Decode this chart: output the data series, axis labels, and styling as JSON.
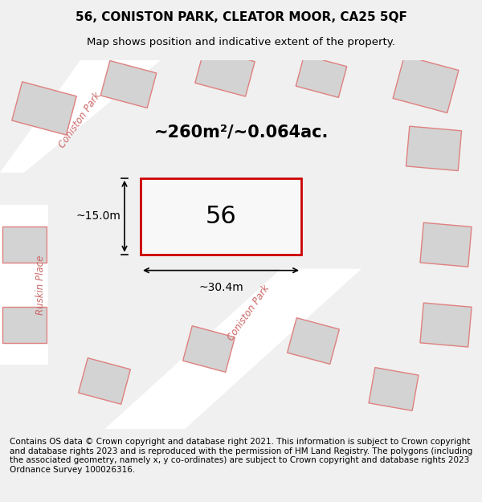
{
  "title_line1": "56, CONISTON PARK, CLEATOR MOOR, CA25 5QF",
  "title_line2": "Map shows position and indicative extent of the property.",
  "footer_text": "Contains OS data © Crown copyright and database right 2021. This information is subject to Crown copyright and database rights 2023 and is reproduced with the permission of HM Land Registry. The polygons (including the associated geometry, namely x, y co-ordinates) are subject to Crown copyright and database rights 2023 Ordnance Survey 100026316.",
  "area_text": "~260m²/~0.064ac.",
  "plot_number": "56",
  "dim_width": "~30.4m",
  "dim_height": "~15.0m",
  "bg_color": "#e8e8e8",
  "map_bg_color": "#f0f0f0",
  "plot_fill": "#f5f5f5",
  "plot_edge_color": "#cc0000",
  "road_color": "#ffffff",
  "building_color": "#d0d0d0",
  "building_edge": "#e08080",
  "street_label_color": "#cc6666",
  "title_fontsize": 11,
  "footer_fontsize": 7.5
}
